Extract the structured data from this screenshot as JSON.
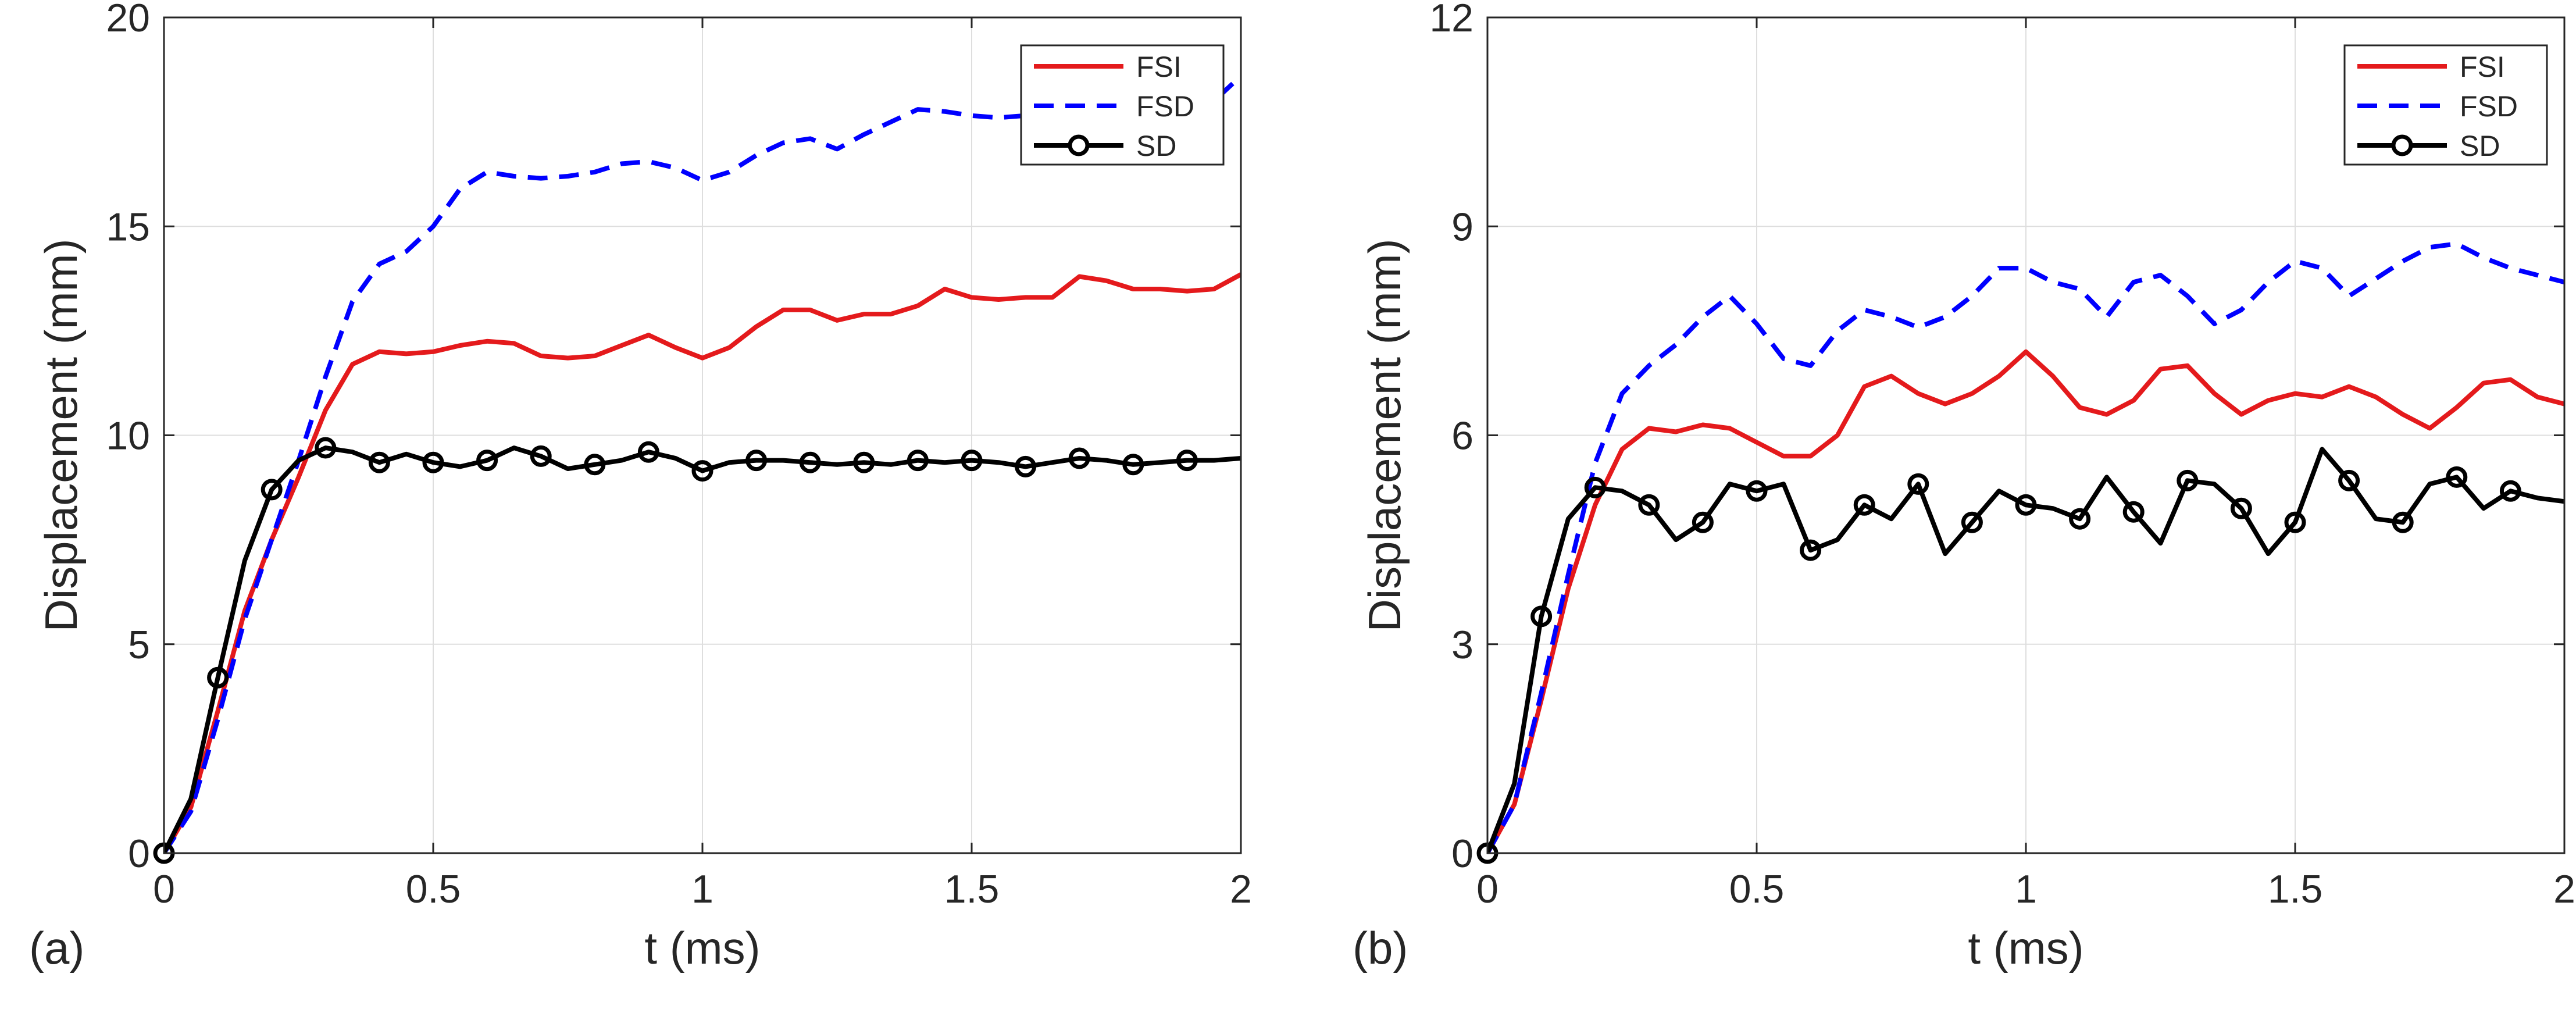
{
  "chart_data": [
    {
      "type": "line",
      "panel_label": "(a)",
      "xlabel": "t (ms)",
      "ylabel": "Displacement (mm)",
      "xlim": [
        0,
        2
      ],
      "ylim": [
        0,
        20
      ],
      "xticks": [
        0,
        0.5,
        1,
        1.5,
        2
      ],
      "xtick_labels": [
        "0",
        "0.5",
        "1",
        "1.5",
        "2"
      ],
      "yticks": [
        0,
        5,
        10,
        15,
        20
      ],
      "ytick_labels": [
        "0",
        "5",
        "10",
        "15",
        "20"
      ],
      "grid": true,
      "legend": "top-right",
      "series": [
        {
          "name": "FSI",
          "color": "#e41a1c",
          "line": "solid",
          "marker": "none",
          "x": [
            0,
            0.05,
            0.1,
            0.15,
            0.2,
            0.25,
            0.3,
            0.35,
            0.4,
            0.45,
            0.5,
            0.55,
            0.6,
            0.65,
            0.7,
            0.75,
            0.8,
            0.85,
            0.9,
            0.95,
            1.0,
            1.05,
            1.1,
            1.15,
            1.2,
            1.25,
            1.3,
            1.35,
            1.4,
            1.45,
            1.5,
            1.55,
            1.6,
            1.65,
            1.7,
            1.75,
            1.8,
            1.85,
            1.9,
            1.95,
            2.0
          ],
          "y": [
            0,
            1.1,
            3.4,
            5.8,
            7.5,
            9.0,
            10.6,
            11.7,
            12.0,
            11.95,
            12.0,
            12.15,
            12.25,
            12.2,
            11.9,
            11.85,
            11.9,
            12.15,
            12.4,
            12.1,
            11.85,
            12.1,
            12.6,
            13.0,
            13.0,
            12.75,
            12.9,
            12.9,
            13.1,
            13.5,
            13.3,
            13.25,
            13.3,
            13.3,
            13.8,
            13.7,
            13.5,
            13.5,
            13.45,
            13.5,
            13.85
          ]
        },
        {
          "name": "FSD",
          "color": "#0000ff",
          "line": "dashed",
          "marker": "none",
          "x": [
            0,
            0.05,
            0.1,
            0.15,
            0.2,
            0.25,
            0.3,
            0.35,
            0.4,
            0.45,
            0.5,
            0.55,
            0.6,
            0.65,
            0.7,
            0.75,
            0.8,
            0.85,
            0.9,
            0.95,
            1.0,
            1.05,
            1.1,
            1.15,
            1.2,
            1.25,
            1.3,
            1.35,
            1.4,
            1.45,
            1.5,
            1.55,
            1.6,
            1.65,
            1.7,
            1.75,
            1.8,
            1.85,
            1.9,
            1.95,
            2.0
          ],
          "y": [
            0,
            1.0,
            3.2,
            5.6,
            7.5,
            9.4,
            11.4,
            13.2,
            14.1,
            14.4,
            15.0,
            15.9,
            16.3,
            16.2,
            16.15,
            16.2,
            16.3,
            16.5,
            16.55,
            16.4,
            16.1,
            16.3,
            16.7,
            17.0,
            17.1,
            16.85,
            17.2,
            17.5,
            17.8,
            17.75,
            17.65,
            17.6,
            17.65,
            17.8,
            17.6,
            17.7,
            17.75,
            17.7,
            17.8,
            18.0,
            18.6
          ]
        },
        {
          "name": "SD",
          "color": "#000000",
          "line": "solid",
          "marker": "circle",
          "x": [
            0,
            0.05,
            0.1,
            0.15,
            0.2,
            0.25,
            0.3,
            0.35,
            0.4,
            0.45,
            0.5,
            0.55,
            0.6,
            0.65,
            0.7,
            0.75,
            0.8,
            0.85,
            0.9,
            0.95,
            1.0,
            1.05,
            1.1,
            1.15,
            1.2,
            1.25,
            1.3,
            1.35,
            1.4,
            1.45,
            1.5,
            1.55,
            1.6,
            1.65,
            1.7,
            1.75,
            1.8,
            1.85,
            1.9,
            1.95,
            2.0
          ],
          "y": [
            0,
            1.3,
            4.2,
            7.0,
            8.7,
            9.4,
            9.7,
            9.6,
            9.35,
            9.55,
            9.35,
            9.25,
            9.4,
            9.7,
            9.5,
            9.2,
            9.3,
            9.4,
            9.6,
            9.45,
            9.15,
            9.35,
            9.4,
            9.4,
            9.35,
            9.3,
            9.35,
            9.3,
            9.4,
            9.35,
            9.4,
            9.35,
            9.25,
            9.35,
            9.45,
            9.4,
            9.3,
            9.35,
            9.4,
            9.4,
            9.45
          ],
          "marker_x": [
            0,
            0.1,
            0.2,
            0.3,
            0.4,
            0.5,
            0.6,
            0.7,
            0.8,
            0.9,
            1.0,
            1.1,
            1.2,
            1.3,
            1.4,
            1.5,
            1.6,
            1.7,
            1.8,
            1.9
          ],
          "marker_y": [
            0,
            4.2,
            8.7,
            9.7,
            9.35,
            9.35,
            9.4,
            9.5,
            9.3,
            9.6,
            9.15,
            9.4,
            9.35,
            9.35,
            9.4,
            9.4,
            9.25,
            9.45,
            9.3,
            9.4
          ]
        }
      ]
    },
    {
      "type": "line",
      "panel_label": "(b)",
      "xlabel": "t (ms)",
      "ylabel": "Displacement (mm)",
      "xlim": [
        0,
        2
      ],
      "ylim": [
        0,
        12
      ],
      "xticks": [
        0,
        0.5,
        1,
        1.5,
        2
      ],
      "xtick_labels": [
        "0",
        "0.5",
        "1",
        "1.5",
        "2"
      ],
      "yticks": [
        0,
        3,
        6,
        9,
        12
      ],
      "ytick_labels": [
        "0",
        "3",
        "6",
        "9",
        "12"
      ],
      "grid": true,
      "legend": "top-right",
      "series": [
        {
          "name": "FSI",
          "color": "#e41a1c",
          "line": "solid",
          "marker": "none",
          "x": [
            0,
            0.05,
            0.1,
            0.15,
            0.2,
            0.25,
            0.3,
            0.35,
            0.4,
            0.45,
            0.5,
            0.55,
            0.6,
            0.65,
            0.7,
            0.75,
            0.8,
            0.85,
            0.9,
            0.95,
            1.0,
            1.05,
            1.1,
            1.15,
            1.2,
            1.25,
            1.3,
            1.35,
            1.4,
            1.45,
            1.5,
            1.55,
            1.6,
            1.65,
            1.7,
            1.75,
            1.8,
            1.85,
            1.9,
            1.95,
            2.0
          ],
          "y": [
            0,
            0.7,
            2.2,
            3.8,
            5.0,
            5.8,
            6.1,
            6.05,
            6.15,
            6.1,
            5.9,
            5.7,
            5.7,
            6.0,
            6.7,
            6.85,
            6.6,
            6.45,
            6.6,
            6.85,
            7.2,
            6.85,
            6.4,
            6.3,
            6.5,
            6.95,
            7.0,
            6.6,
            6.3,
            6.5,
            6.6,
            6.55,
            6.7,
            6.55,
            6.3,
            6.1,
            6.4,
            6.75,
            6.8,
            6.55,
            6.45
          ]
        },
        {
          "name": "FSD",
          "color": "#0000ff",
          "line": "dashed",
          "marker": "none",
          "x": [
            0,
            0.05,
            0.1,
            0.15,
            0.2,
            0.25,
            0.3,
            0.35,
            0.4,
            0.45,
            0.5,
            0.55,
            0.6,
            0.65,
            0.7,
            0.75,
            0.8,
            0.85,
            0.9,
            0.95,
            1.0,
            1.05,
            1.1,
            1.15,
            1.2,
            1.25,
            1.3,
            1.35,
            1.4,
            1.45,
            1.5,
            1.55,
            1.6,
            1.65,
            1.7,
            1.75,
            1.8,
            1.85,
            1.9,
            1.95,
            2.0
          ],
          "y": [
            0,
            0.7,
            2.3,
            4.0,
            5.6,
            6.6,
            7.0,
            7.3,
            7.7,
            8.0,
            7.6,
            7.1,
            7.0,
            7.5,
            7.8,
            7.7,
            7.55,
            7.7,
            8.0,
            8.4,
            8.4,
            8.2,
            8.1,
            7.7,
            8.2,
            8.3,
            8.0,
            7.6,
            7.8,
            8.2,
            8.5,
            8.4,
            8.0,
            8.25,
            8.5,
            8.7,
            8.75,
            8.55,
            8.4,
            8.3,
            8.2
          ]
        },
        {
          "name": "SD",
          "color": "#000000",
          "line": "solid",
          "marker": "circle",
          "x": [
            0,
            0.05,
            0.1,
            0.15,
            0.2,
            0.25,
            0.3,
            0.35,
            0.4,
            0.45,
            0.5,
            0.55,
            0.6,
            0.65,
            0.7,
            0.75,
            0.8,
            0.85,
            0.9,
            0.95,
            1.0,
            1.05,
            1.1,
            1.15,
            1.2,
            1.25,
            1.3,
            1.35,
            1.4,
            1.45,
            1.5,
            1.55,
            1.6,
            1.65,
            1.7,
            1.75,
            1.8,
            1.85,
            1.9,
            1.95,
            2.0
          ],
          "y": [
            0,
            1.0,
            3.4,
            4.8,
            5.25,
            5.2,
            5.0,
            4.5,
            4.75,
            5.3,
            5.2,
            5.3,
            4.35,
            4.5,
            5.0,
            4.8,
            5.3,
            4.3,
            4.75,
            5.2,
            5.0,
            4.95,
            4.8,
            5.4,
            4.9,
            4.45,
            5.35,
            5.3,
            4.95,
            4.3,
            4.75,
            5.8,
            5.35,
            4.8,
            4.75,
            5.3,
            5.4,
            4.95,
            5.2,
            5.1,
            5.05
          ],
          "marker_x": [
            0,
            0.1,
            0.2,
            0.3,
            0.4,
            0.5,
            0.6,
            0.7,
            0.8,
            0.9,
            1.0,
            1.1,
            1.2,
            1.3,
            1.4,
            1.5,
            1.6,
            1.7,
            1.8,
            1.9
          ],
          "marker_y": [
            0,
            3.4,
            5.25,
            5.0,
            4.75,
            5.2,
            4.35,
            5.0,
            5.3,
            4.75,
            5.0,
            4.8,
            4.9,
            5.35,
            4.95,
            4.75,
            5.35,
            4.75,
            5.4,
            5.2
          ]
        }
      ]
    }
  ]
}
